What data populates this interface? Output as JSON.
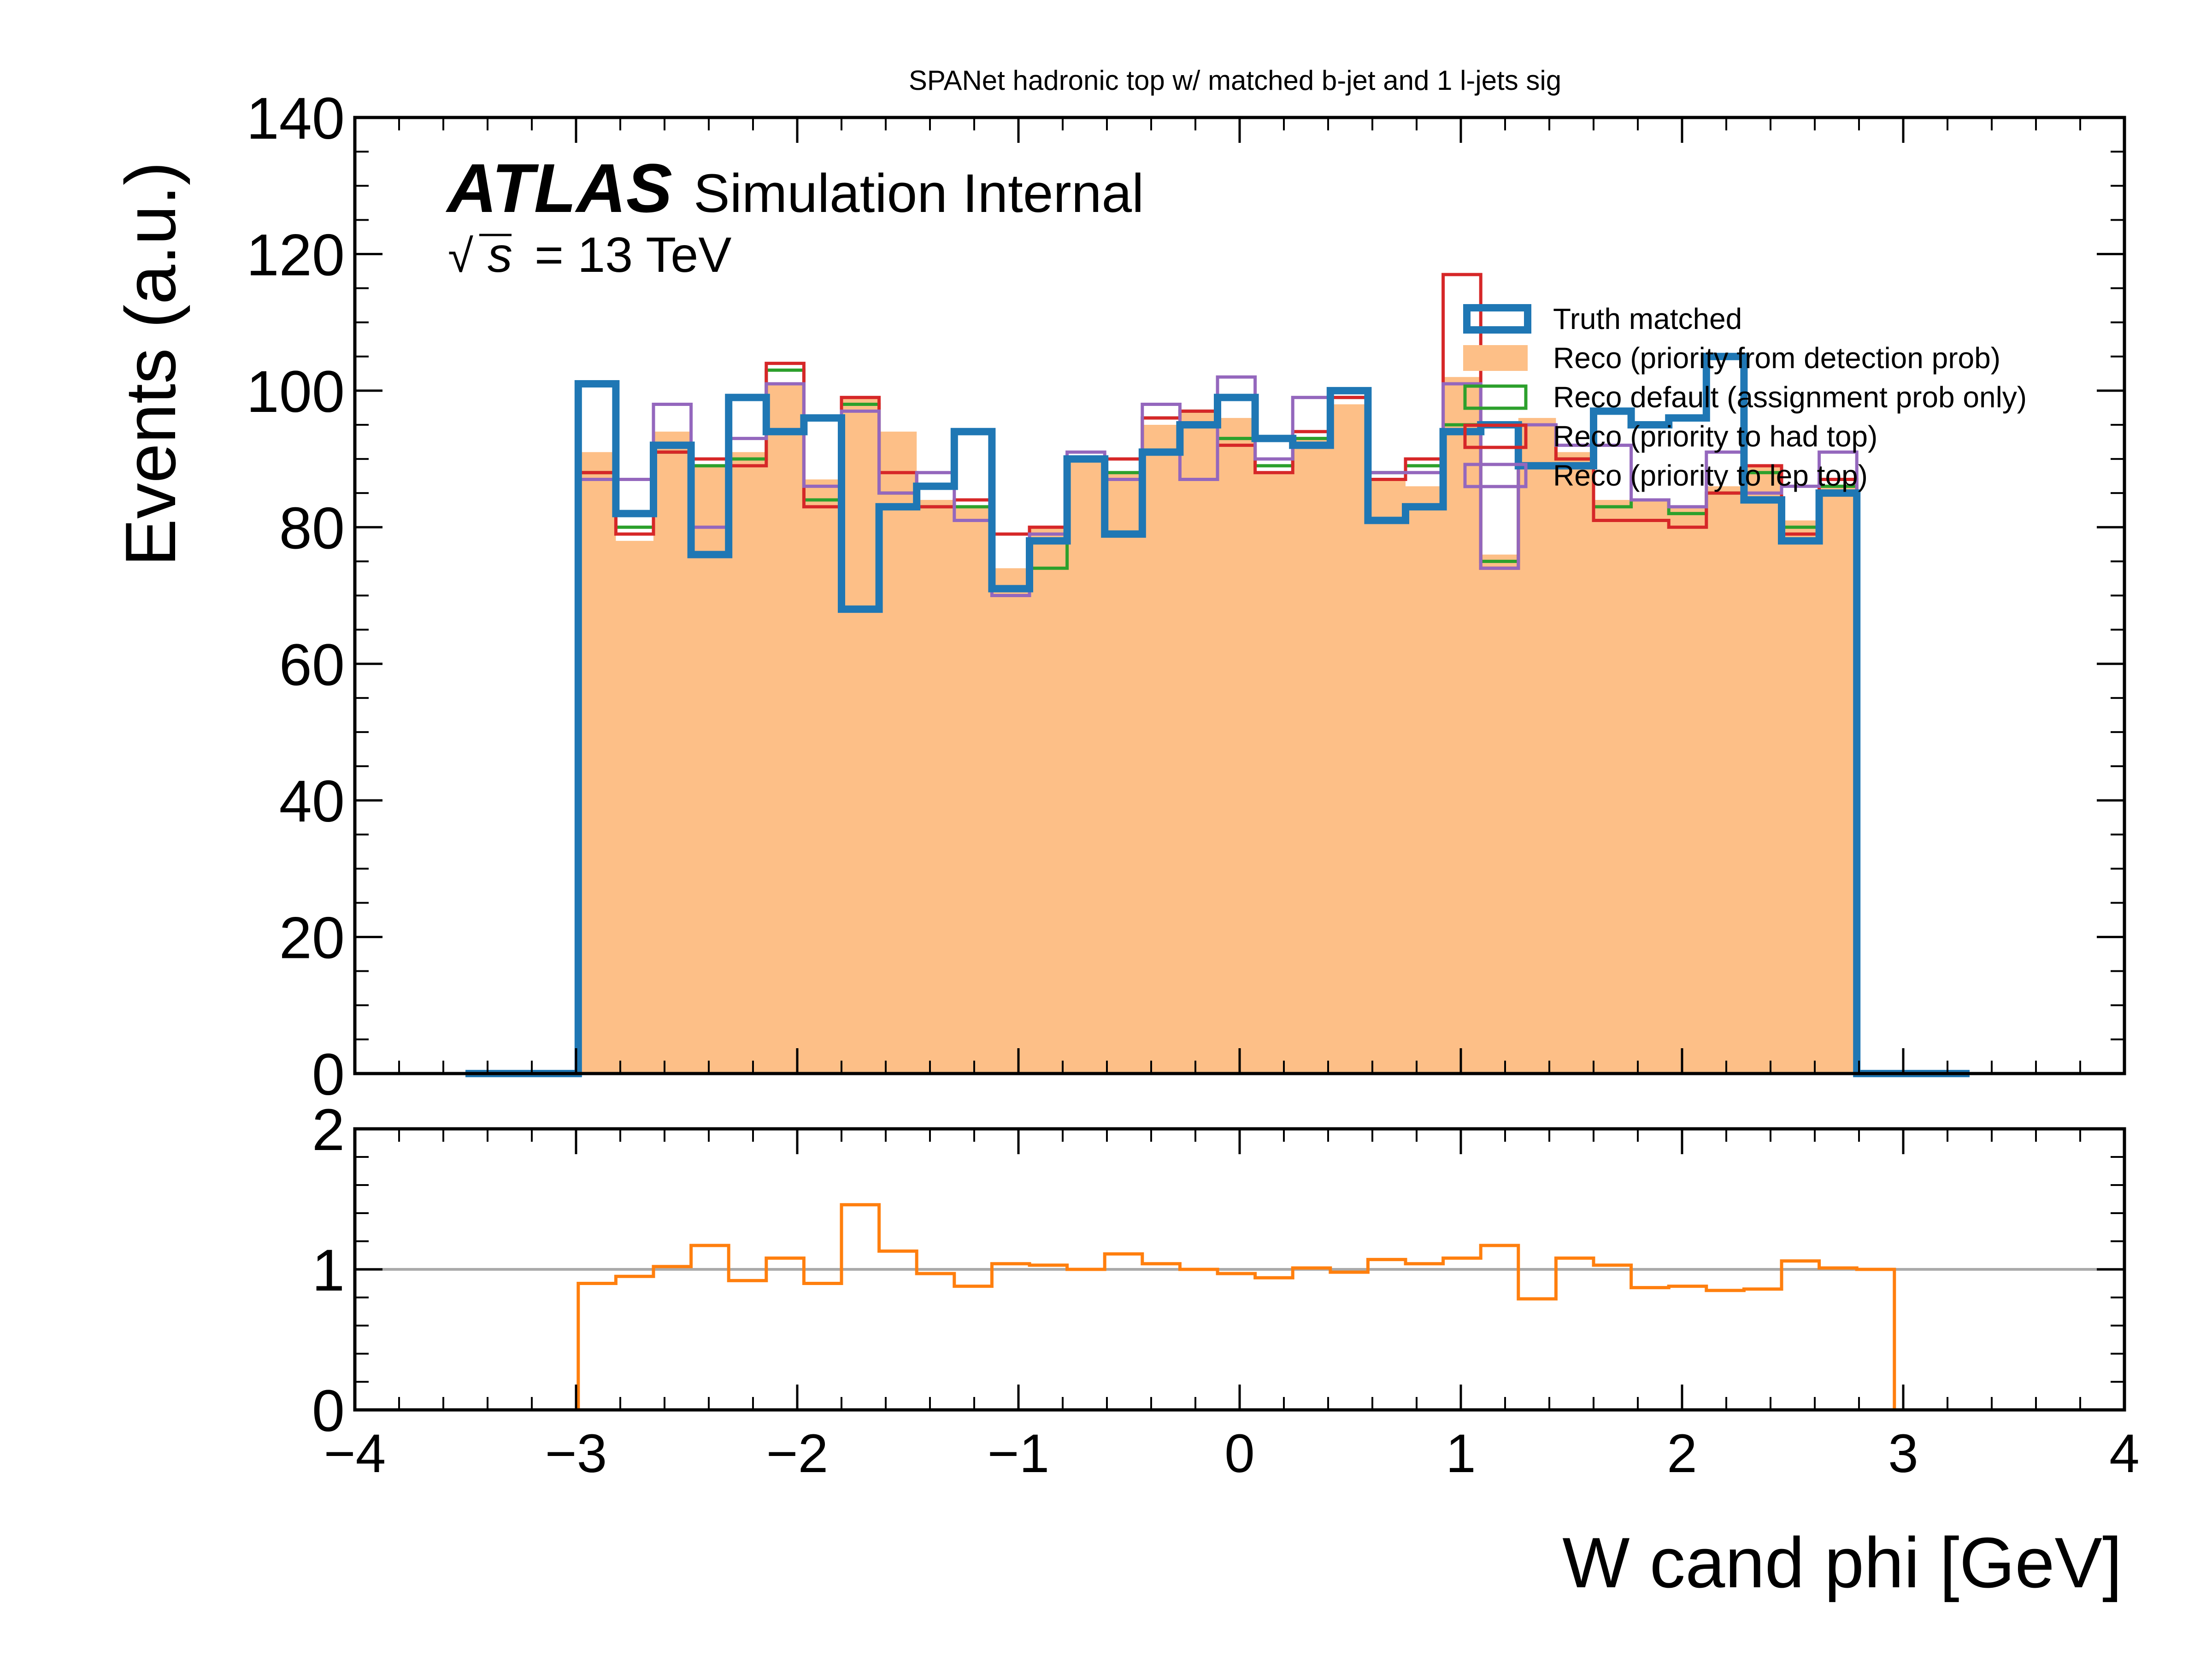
{
  "chart_data": [
    {
      "type": "histogram",
      "title": "SPANet hadronic top w/ matched b-jet and 1 l-jets sig",
      "ylabel": "Events (a.u.)",
      "ylim": [
        0,
        140
      ],
      "xlim": [
        -4,
        4
      ],
      "yticks": [
        "0",
        "20",
        "40",
        "60",
        "80",
        "100",
        "120",
        "140"
      ],
      "atlas_label": "ATLAS",
      "atlas_sublabel": "Simulation Internal",
      "energy_sqrt": "√",
      "energy_s": "s",
      "energy_rest": "= 13 TeV",
      "legend_position": "upper right",
      "bins": {
        "start": -3.5,
        "width": 0.17,
        "count": 40
      },
      "series": [
        {
          "name": "Truth matched",
          "style": "step-thick",
          "color": "#1f77b4",
          "values": [
            0,
            0,
            0,
            101,
            82,
            92,
            76,
            99,
            94,
            96,
            68,
            83,
            86,
            94,
            71,
            78,
            90,
            79,
            91,
            95,
            99,
            93,
            92,
            100,
            81,
            83,
            94,
            95,
            89,
            89,
            97,
            95,
            96,
            105,
            84,
            78,
            85,
            0,
            0,
            0
          ]
        },
        {
          "name": "Reco (priority from detection prob)",
          "style": "filled",
          "color": "#fdbf87",
          "values": [
            0,
            0,
            0,
            91,
            78,
            94,
            89,
            91,
            101,
            87,
            99,
            94,
            84,
            83,
            74,
            80,
            90,
            88,
            95,
            97,
            96,
            88,
            93,
            98,
            87,
            86,
            102,
            76,
            96,
            91,
            84,
            84,
            83,
            86,
            89,
            81,
            86,
            0,
            0,
            0
          ]
        },
        {
          "name": "Reco default (assignment prob only)",
          "style": "step",
          "color": "#2ca02c",
          "values": [
            0,
            0,
            0,
            88,
            80,
            91,
            89,
            90,
            103,
            84,
            98,
            85,
            83,
            83,
            71,
            74,
            90,
            88,
            96,
            97,
            93,
            89,
            93,
            99,
            88,
            89,
            95,
            75,
            95,
            90,
            83,
            84,
            82,
            85,
            88,
            80,
            86,
            0,
            0,
            0
          ]
        },
        {
          "name": "Reco (priority to had top)",
          "style": "step",
          "color": "#d62728",
          "values": [
            0,
            0,
            0,
            88,
            79,
            91,
            90,
            89,
            104,
            83,
            99,
            88,
            83,
            84,
            79,
            80,
            90,
            90,
            96,
            97,
            92,
            88,
            94,
            99,
            87,
            90,
            117,
            74,
            95,
            90,
            81,
            81,
            80,
            85,
            89,
            79,
            87,
            0,
            0,
            0
          ]
        },
        {
          "name": "Reco (priority to lep top)",
          "style": "step",
          "color": "#9467bd",
          "values": [
            0,
            0,
            0,
            87,
            87,
            98,
            80,
            93,
            101,
            86,
            97,
            85,
            88,
            81,
            70,
            79,
            91,
            87,
            98,
            87,
            102,
            90,
            99,
            100,
            88,
            88,
            101,
            74,
            95,
            92,
            92,
            84,
            83,
            91,
            85,
            86,
            91,
            0,
            0,
            0
          ]
        }
      ]
    },
    {
      "type": "histogram",
      "xlabel": "W cand phi [GeV]",
      "ylim": [
        0,
        2
      ],
      "xlim": [
        -4,
        4
      ],
      "xticks": [
        "−4",
        "−3",
        "−2",
        "−1",
        "0",
        "1",
        "2",
        "3",
        "4"
      ],
      "yticks": [
        "0",
        "1",
        "2"
      ],
      "reference_line": 1,
      "series": [
        {
          "style": "step",
          "color": "#ff7f0e",
          "values": [
            0,
            0,
            0,
            0.9,
            0.95,
            1.02,
            1.17,
            0.92,
            1.08,
            0.9,
            1.46,
            1.13,
            0.97,
            0.88,
            1.04,
            1.03,
            1.0,
            1.11,
            1.04,
            1.0,
            0.97,
            0.94,
            1.01,
            0.98,
            1.07,
            1.04,
            1.08,
            1.17,
            0.79,
            1.08,
            1.03,
            0.87,
            0.88,
            0.85,
            0.86,
            1.06,
            1.01,
            1.0,
            0,
            0
          ]
        }
      ]
    }
  ]
}
